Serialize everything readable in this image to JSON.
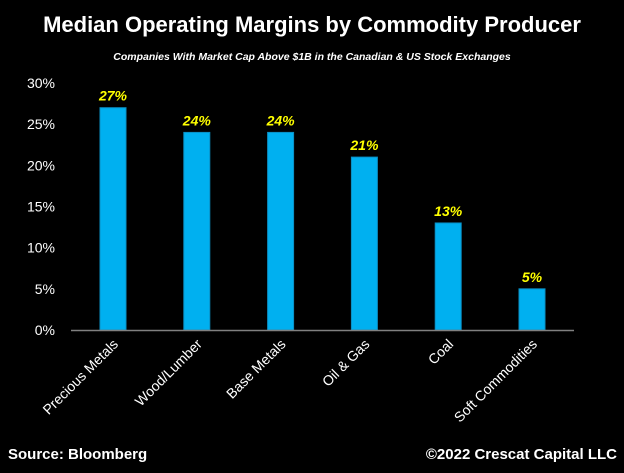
{
  "chart_data": {
    "type": "bar",
    "title": "Median Operating Margins by Commodity Producer",
    "subtitle": "Companies With Market Cap Above $1B in the Canadian & US Stock Exchanges",
    "categories": [
      "Precious Metals",
      "Wood/Lumber",
      "Base Metals",
      "Oil & Gas",
      "Coal",
      "Soft Commodities"
    ],
    "values": [
      27,
      24,
      24,
      21,
      13,
      5
    ],
    "data_labels": [
      "27%",
      "24%",
      "24%",
      "21%",
      "13%",
      "5%"
    ],
    "xlabel": "",
    "ylabel": "",
    "ylim": [
      0,
      30
    ],
    "yticks": [
      0,
      5,
      10,
      15,
      20,
      25,
      30
    ],
    "ytick_labels": [
      "0%",
      "5%",
      "10%",
      "15%",
      "20%",
      "25%",
      "30%"
    ],
    "grid": false,
    "legend": "none",
    "colors": {
      "bar": "#00b0f0",
      "bar_edge": "#0a8fc4",
      "data_label": "#ffff00",
      "axis": "#808080",
      "background": "#000000",
      "text": "#ffffff"
    }
  },
  "footer": {
    "source": "Source: Bloomberg",
    "copyright": "©2022 Crescat Capital LLC"
  }
}
